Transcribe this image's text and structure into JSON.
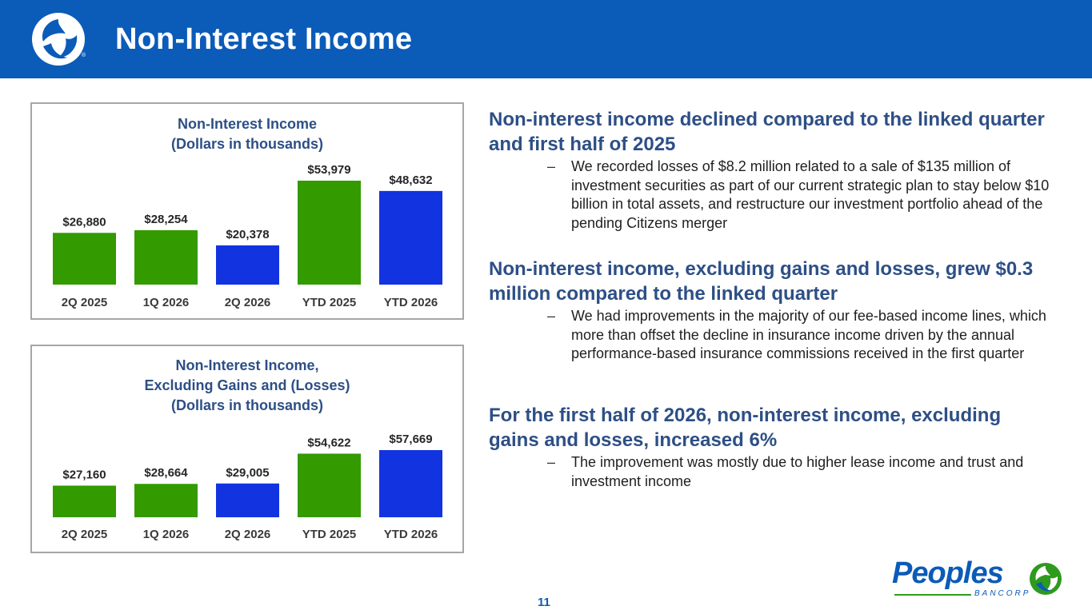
{
  "header": {
    "title": "Non-Interest Income",
    "background_color": "#0b5bb9"
  },
  "charts": {
    "chart1_title_line1": "Non-Interest Income",
    "chart1_title_line2": "(Dollars in thousands)",
    "chart2_title_line1": "Non-Interest Income,",
    "chart2_title_line2": "Excluding Gains and (Losses)",
    "chart2_title_line3": "(Dollars in thousands)"
  },
  "chart_data": [
    {
      "type": "bar",
      "title": "Non-Interest Income (Dollars in thousands)",
      "categories": [
        "2Q 2025",
        "1Q 2026",
        "2Q 2026",
        "YTD 2025",
        "YTD 2026"
      ],
      "values": [
        26880,
        28254,
        20378,
        53979,
        48632
      ],
      "labels": [
        "$26,880",
        "$28,254",
        "$20,378",
        "$53,979",
        "$48,632"
      ],
      "colors": [
        "#339a00",
        "#339a00",
        "#1233e0",
        "#339a00",
        "#1233e0"
      ],
      "ylim": [
        0,
        60000
      ],
      "grid": false
    },
    {
      "type": "bar",
      "title": "Non-Interest Income, Excluding Gains and (Losses) (Dollars in thousands)",
      "categories": [
        "2Q 2025",
        "1Q 2026",
        "2Q 2026",
        "YTD 2025",
        "YTD 2026"
      ],
      "values": [
        27160,
        28664,
        29005,
        54622,
        57669
      ],
      "labels": [
        "$27,160",
        "$28,664",
        "$29,005",
        "$54,622",
        "$57,669"
      ],
      "colors": [
        "#339a00",
        "#339a00",
        "#1233e0",
        "#339a00",
        "#1233e0"
      ],
      "ylim": [
        0,
        60000
      ],
      "grid": false
    }
  ],
  "content": {
    "section1_heading": "Non-interest income declined compared to the linked quarter and first half of 2025",
    "section1_bullet": "We recorded losses of $8.2 million related to a sale of $135 million of investment securities as part of our current strategic plan to stay below $10 billion in total assets, and restructure our investment portfolio ahead of the pending Citizens merger",
    "section2_heading": "Non-interest income, excluding gains and losses, grew $0.3 million compared to the linked quarter",
    "section2_bullet": "We had improvements in the majority of our fee-based income lines, which more than offset the decline in insurance income driven by the annual performance-based insurance commissions received in the first quarter",
    "section3_heading": "For the first half of 2026, non-interest income, excluding gains and losses, increased 6%",
    "section3_bullet": "The improvement was mostly due to higher lease income and trust and investment income",
    "dash": "–"
  },
  "footer": {
    "page_number": "11",
    "brand_name": "Peoples",
    "brand_sub": "BANCORP",
    "registered": "®",
    "accent_color": "#2e9a1e"
  }
}
